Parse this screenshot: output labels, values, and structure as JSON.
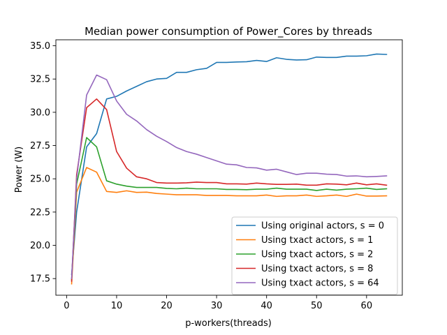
{
  "chart_data": {
    "type": "line",
    "title": "Median power consumption of Power_Cores by threads",
    "xlabel": "p-workers(threads)",
    "ylabel": "Power (W)",
    "xlim": [
      -2.15,
      67.15
    ],
    "ylim": [
      16.25,
      35.45
    ],
    "xticks": [
      0,
      10,
      20,
      30,
      40,
      50,
      60
    ],
    "xtick_labels": [
      "0",
      "10",
      "20",
      "30",
      "40",
      "50",
      "60"
    ],
    "yticks": [
      17.5,
      20.0,
      22.5,
      25.0,
      27.5,
      30.0,
      32.5,
      35.0
    ],
    "ytick_labels": [
      "17.5",
      "20.0",
      "22.5",
      "25.0",
      "27.5",
      "30.0",
      "32.5",
      "35.0"
    ],
    "grid": false,
    "legend_position": "lower-right",
    "x": [
      1,
      2,
      4,
      6,
      8,
      10,
      12,
      14,
      16,
      18,
      20,
      22,
      24,
      26,
      28,
      30,
      32,
      34,
      36,
      38,
      40,
      42,
      44,
      46,
      48,
      50,
      52,
      54,
      56,
      58,
      60,
      62,
      64
    ],
    "series": [
      {
        "name": "Using original actors, s = 0",
        "color": "#1f77b4",
        "values": [
          17.8,
          22.5,
          27.4,
          28.4,
          31.0,
          31.2,
          31.6,
          31.95,
          32.3,
          32.5,
          32.55,
          33.0,
          33.0,
          33.2,
          33.3,
          33.75,
          33.75,
          33.78,
          33.8,
          33.9,
          33.82,
          34.1,
          33.98,
          33.93,
          33.95,
          34.15,
          34.12,
          34.12,
          34.22,
          34.22,
          34.25,
          34.38,
          34.35
        ]
      },
      {
        "name": "Using txact actors, s = 1",
        "color": "#ff7f0e",
        "values": [
          17.1,
          24.0,
          25.85,
          25.5,
          24.05,
          23.98,
          24.1,
          23.98,
          24.0,
          23.9,
          23.85,
          23.8,
          23.8,
          23.8,
          23.75,
          23.75,
          23.75,
          23.72,
          23.72,
          23.72,
          23.78,
          23.68,
          23.72,
          23.72,
          23.78,
          23.68,
          23.72,
          23.78,
          23.68,
          23.85,
          23.7,
          23.7,
          23.72
        ]
      },
      {
        "name": "Using txact actors, s = 2",
        "color": "#2ca02c",
        "values": [
          17.4,
          24.6,
          28.1,
          27.4,
          24.85,
          24.6,
          24.45,
          24.35,
          24.35,
          24.35,
          24.28,
          24.25,
          24.3,
          24.25,
          24.25,
          24.25,
          24.2,
          24.2,
          24.18,
          24.22,
          24.22,
          24.3,
          24.22,
          24.22,
          24.22,
          24.12,
          24.22,
          24.15,
          24.22,
          24.25,
          24.3,
          24.2,
          24.25
        ]
      },
      {
        "name": "Using txact actors, s = 8",
        "color": "#d62728",
        "values": [
          17.3,
          25.3,
          30.35,
          31.0,
          30.2,
          27.05,
          25.8,
          25.15,
          25.0,
          24.72,
          24.68,
          24.68,
          24.7,
          24.75,
          24.72,
          24.72,
          24.62,
          24.62,
          24.6,
          24.68,
          24.62,
          24.58,
          24.58,
          24.6,
          24.52,
          24.52,
          24.62,
          24.6,
          24.55,
          24.68,
          24.55,
          24.62,
          24.52
        ]
      },
      {
        "name": "Using txact actors, s = 64",
        "color": "#9467bd",
        "values": [
          17.5,
          25.0,
          31.3,
          32.8,
          32.45,
          30.85,
          29.85,
          29.35,
          28.7,
          28.2,
          27.8,
          27.35,
          27.05,
          26.85,
          26.6,
          26.35,
          26.1,
          26.05,
          25.85,
          25.82,
          25.65,
          25.72,
          25.52,
          25.32,
          25.42,
          25.42,
          25.35,
          25.32,
          25.2,
          25.22,
          25.15,
          25.18,
          25.22
        ]
      }
    ]
  }
}
